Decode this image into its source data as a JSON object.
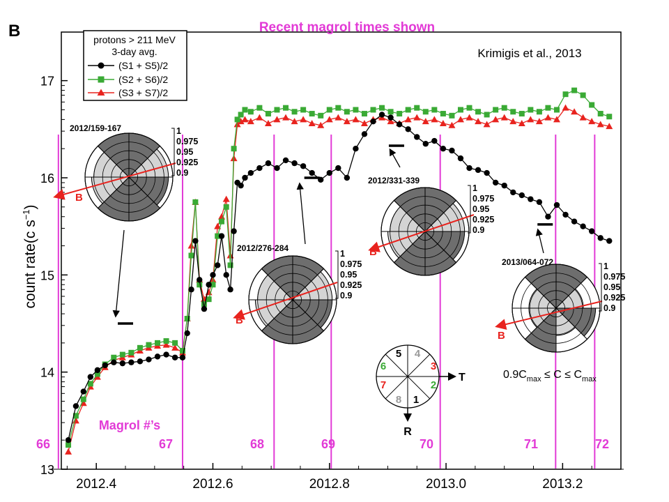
{
  "panel_label": "B",
  "headline": "Recent magrol times shown",
  "citation": "Krimigis et al., 2013",
  "magrol_caption": "Magrol #’s",
  "magrol_numbers": [
    "66",
    "67",
    "68",
    "69",
    "70",
    "71",
    "72"
  ],
  "colors": {
    "magenta": "#e23ad6",
    "black_series": "#000000",
    "green_series": "#3aaa35",
    "red_series": "#e8231e",
    "sector_dark": "#6e6e6e",
    "sector_light": "#d4d4d4",
    "field_arrow": "#e8231e"
  },
  "legend": {
    "title_line1": "protons > 211 MeV",
    "title_line2": "3-day avg.",
    "entries": [
      "(S1 + S5)/2",
      "(S2 + S6)/2",
      "(S3 + S7)/2"
    ]
  },
  "insets": [
    {
      "label": "2012/159-167",
      "scale": [
        "1",
        "0.975",
        "0.95",
        "0.925",
        "0.9"
      ],
      "arrow_label": "B"
    },
    {
      "label": "2012/276-284",
      "scale": [
        "1",
        "0.975",
        "0.95",
        "0.925",
        "0.9"
      ],
      "arrow_label": "B"
    },
    {
      "label": "2012/331-339",
      "scale": [
        "1",
        "0.975",
        "0.95",
        "0.925",
        "0.9"
      ],
      "arrow_label": "B"
    },
    {
      "label": "2013/064-072",
      "scale": [
        "1",
        "0.975",
        "0.95",
        "0.925",
        "0.9"
      ],
      "arrow_label": "B"
    }
  ],
  "sector_key": {
    "sectors": [
      "1",
      "2",
      "3",
      "4",
      "5",
      "6",
      "7",
      "8"
    ],
    "t_label": "T",
    "r_label": "R"
  },
  "formula": "0.9C",
  "formula_sub1": "max",
  "formula_mid": " ≤ C ≤ C",
  "formula_sub2": "max",
  "chart_data": {
    "type": "scatter",
    "title": "",
    "xlabel": "",
    "ylabel": "count rate(c s",
    "ylabel_sup": "−1",
    "ylabel_close": ")",
    "ylabel_scale": "log",
    "xlim": [
      2012.34,
      2013.3
    ],
    "ylim": [
      13,
      17.5
    ],
    "x_ticks": [
      2012.4,
      2012.6,
      2012.8,
      2013.0,
      2013.2
    ],
    "x_tick_labels": [
      "2012.4",
      "2012.6",
      "2012.8",
      "2013.0",
      "2013.2"
    ],
    "y_ticks": [
      13,
      14,
      15,
      16,
      17
    ],
    "y_tick_labels": [
      "13",
      "14",
      "15",
      "16",
      "17"
    ],
    "magrol_times": [
      2012.335,
      2012.548,
      2012.705,
      2012.803,
      2012.99,
      2013.188,
      2013.255
    ],
    "accumulation_periods": [
      {
        "x": 2012.45,
        "y": 14.5
      },
      {
        "x": 2012.77,
        "y": 16.0
      },
      {
        "x": 2012.915,
        "y": 16.33
      },
      {
        "x": 2013.17,
        "y": 15.52
      }
    ],
    "series": [
      {
        "name": "(S1 + S5)/2",
        "x": [
          2012.352,
          2012.365,
          2012.378,
          2012.39,
          2012.402,
          2012.415,
          2012.43,
          2012.445,
          2012.46,
          2012.475,
          2012.49,
          2012.505,
          2012.52,
          2012.535,
          2012.548,
          2012.556,
          2012.563,
          2012.57,
          2012.577,
          2012.585,
          2012.593,
          2012.6,
          2012.608,
          2012.615,
          2012.623,
          2012.63,
          2012.636,
          2012.642,
          2012.648,
          2012.655,
          2012.665,
          2012.68,
          2012.695,
          2012.71,
          2012.725,
          2012.74,
          2012.755,
          2012.77,
          2012.785,
          2012.8,
          2012.815,
          2012.83,
          2012.845,
          2012.86,
          2012.875,
          2012.89,
          2012.905,
          2012.92,
          2012.935,
          2012.95,
          2012.965,
          2012.98,
          2012.995,
          2013.01,
          2013.025,
          2013.04,
          2013.055,
          2013.07,
          2013.085,
          2013.1,
          2013.115,
          2013.13,
          2013.145,
          2013.16,
          2013.175,
          2013.19,
          2013.205,
          2013.22,
          2013.235,
          2013.25,
          2013.265,
          2013.28
        ],
        "values": [
          13.3,
          13.65,
          13.8,
          13.95,
          14.02,
          14.07,
          14.1,
          14.09,
          14.1,
          14.11,
          14.13,
          14.16,
          14.18,
          14.15,
          14.15,
          14.4,
          14.85,
          15.35,
          14.95,
          14.65,
          14.9,
          15.0,
          15.1,
          15.4,
          15.0,
          14.85,
          15.45,
          15.95,
          15.92,
          16.0,
          16.05,
          16.1,
          16.15,
          16.1,
          16.18,
          16.15,
          16.12,
          16.05,
          15.98,
          16.05,
          16.1,
          16.0,
          16.3,
          16.45,
          16.58,
          16.65,
          16.62,
          16.55,
          16.5,
          16.42,
          16.35,
          16.38,
          16.3,
          16.28,
          16.2,
          16.1,
          16.08,
          16.05,
          15.95,
          15.92,
          15.85,
          15.82,
          15.78,
          15.75,
          15.6,
          15.72,
          15.62,
          15.55,
          15.5,
          15.45,
          15.38,
          15.35
        ]
      },
      {
        "name": "(S2 + S6)/2",
        "x": [
          2012.352,
          2012.365,
          2012.378,
          2012.39,
          2012.402,
          2012.415,
          2012.43,
          2012.445,
          2012.46,
          2012.475,
          2012.49,
          2012.505,
          2012.52,
          2012.535,
          2012.548,
          2012.556,
          2012.563,
          2012.57,
          2012.577,
          2012.585,
          2012.593,
          2012.6,
          2012.608,
          2012.615,
          2012.623,
          2012.63,
          2012.636,
          2012.642,
          2012.648,
          2012.655,
          2012.665,
          2012.68,
          2012.695,
          2012.71,
          2012.725,
          2012.74,
          2012.755,
          2012.77,
          2012.785,
          2012.8,
          2012.815,
          2012.83,
          2012.845,
          2012.86,
          2012.875,
          2012.89,
          2012.905,
          2012.92,
          2012.935,
          2012.95,
          2012.965,
          2012.98,
          2012.995,
          2013.01,
          2013.025,
          2013.04,
          2013.055,
          2013.07,
          2013.085,
          2013.1,
          2013.115,
          2013.13,
          2013.145,
          2013.16,
          2013.175,
          2013.19,
          2013.205,
          2013.22,
          2013.235,
          2013.25,
          2013.265,
          2013.28
        ],
        "values": [
          13.25,
          13.55,
          13.72,
          13.88,
          13.98,
          14.08,
          14.15,
          14.18,
          14.2,
          14.25,
          14.28,
          14.3,
          14.32,
          14.3,
          14.22,
          14.55,
          15.2,
          15.75,
          14.9,
          14.7,
          14.75,
          14.9,
          15.4,
          15.55,
          15.7,
          15.1,
          16.3,
          16.6,
          16.65,
          16.7,
          16.68,
          16.72,
          16.66,
          16.7,
          16.72,
          16.68,
          16.7,
          16.66,
          16.64,
          16.7,
          16.72,
          16.68,
          16.7,
          16.66,
          16.7,
          16.72,
          16.68,
          16.66,
          16.7,
          16.72,
          16.68,
          16.7,
          16.66,
          16.64,
          16.7,
          16.72,
          16.68,
          16.65,
          16.7,
          16.72,
          16.68,
          16.66,
          16.7,
          16.68,
          16.72,
          16.7,
          16.86,
          16.9,
          16.85,
          16.75,
          16.66,
          16.63
        ]
      },
      {
        "name": "(S3 + S7)/2",
        "x": [
          2012.352,
          2012.365,
          2012.378,
          2012.39,
          2012.402,
          2012.415,
          2012.43,
          2012.445,
          2012.46,
          2012.475,
          2012.49,
          2012.505,
          2012.52,
          2012.535,
          2012.548,
          2012.556,
          2012.563,
          2012.57,
          2012.577,
          2012.585,
          2012.593,
          2012.6,
          2012.608,
          2012.615,
          2012.623,
          2012.63,
          2012.636,
          2012.642,
          2012.648,
          2012.655,
          2012.665,
          2012.68,
          2012.695,
          2012.71,
          2012.725,
          2012.74,
          2012.755,
          2012.77,
          2012.785,
          2012.8,
          2012.815,
          2012.83,
          2012.845,
          2012.86,
          2012.875,
          2012.89,
          2012.905,
          2012.92,
          2012.935,
          2012.95,
          2012.965,
          2012.98,
          2012.995,
          2013.01,
          2013.025,
          2013.04,
          2013.055,
          2013.07,
          2013.085,
          2013.1,
          2013.115,
          2013.13,
          2013.145,
          2013.16,
          2013.175,
          2013.19,
          2013.205,
          2013.22,
          2013.235,
          2013.25,
          2013.265,
          2013.28
        ],
        "values": [
          13.18,
          13.5,
          13.68,
          13.85,
          13.95,
          14.05,
          14.12,
          14.15,
          14.18,
          14.22,
          14.25,
          14.27,
          14.28,
          14.25,
          14.2,
          14.55,
          15.3,
          15.75,
          14.95,
          14.75,
          14.82,
          14.95,
          15.5,
          15.6,
          15.78,
          15.2,
          16.2,
          16.55,
          16.58,
          16.6,
          16.58,
          16.62,
          16.56,
          16.6,
          16.62,
          16.58,
          16.6,
          16.56,
          16.54,
          16.6,
          16.62,
          16.58,
          16.6,
          16.56,
          16.6,
          16.62,
          16.58,
          16.56,
          16.6,
          16.62,
          16.58,
          16.6,
          16.56,
          16.54,
          16.6,
          16.62,
          16.58,
          16.55,
          16.6,
          16.62,
          16.58,
          16.56,
          16.6,
          16.58,
          16.62,
          16.6,
          16.72,
          16.68,
          16.62,
          16.58,
          16.55,
          16.53
        ]
      }
    ]
  }
}
